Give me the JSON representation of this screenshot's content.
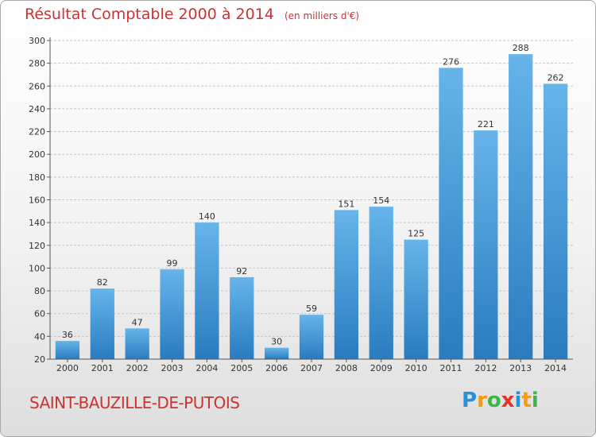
{
  "chart_data": {
    "type": "bar",
    "title": "Résultat Comptable 2000 à 2014",
    "subtitle": "(en milliers d'€)",
    "categories": [
      "2000",
      "2001",
      "2002",
      "2003",
      "2004",
      "2005",
      "2006",
      "2007",
      "2008",
      "2009",
      "2010",
      "2011",
      "2012",
      "2013",
      "2014"
    ],
    "values": [
      36,
      82,
      47,
      99,
      140,
      92,
      30,
      59,
      151,
      154,
      125,
      276,
      221,
      288,
      262
    ],
    "ylim": [
      20,
      300
    ],
    "yticks": [
      20,
      40,
      60,
      80,
      100,
      120,
      140,
      160,
      180,
      200,
      220,
      240,
      260,
      280,
      300
    ],
    "grid": true,
    "bar_color_top": "#66b4ea",
    "bar_color_bottom": "#2a7cbf"
  },
  "commune": "SAINT-BAUZILLE-DE-PUTOIS",
  "brand": {
    "letters": [
      "P",
      "r",
      "o",
      "x",
      "i",
      "t",
      "i"
    ],
    "colors": [
      "#2b8fd6",
      "#f39c12",
      "#3cb64a",
      "#e2342b",
      "#2b8fd6",
      "#f39c12",
      "#3cb64a"
    ]
  }
}
